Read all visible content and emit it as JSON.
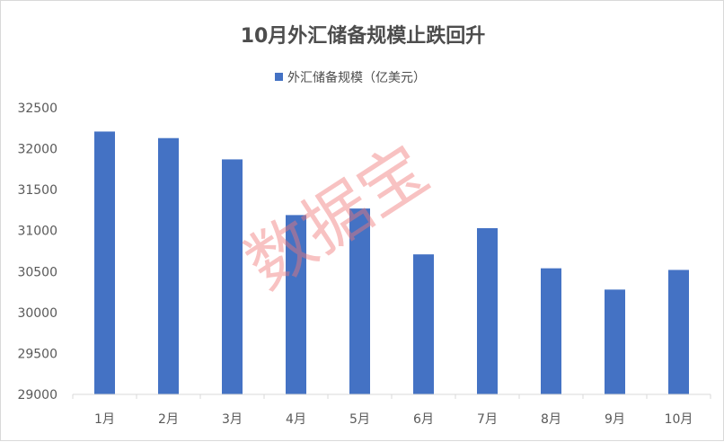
{
  "chart_data": {
    "type": "bar",
    "title": "10月外汇储备规模止跌回升",
    "categories": [
      "1月",
      "2月",
      "3月",
      "4月",
      "5月",
      "6月",
      "7月",
      "8月",
      "9月",
      "10月"
    ],
    "series": [
      {
        "name": "外汇储备规模（亿美元）",
        "values": [
          32210,
          32130,
          31870,
          31190,
          31270,
          30710,
          31030,
          30540,
          30280,
          30520
        ]
      }
    ],
    "xlabel": "",
    "ylabel": "",
    "ylim": [
      29000,
      32500
    ],
    "yticks": [
      29000,
      29500,
      30000,
      30500,
      31000,
      31500,
      32000,
      32500
    ],
    "grid": false,
    "legend": "top-center",
    "colors": {
      "bar": "#4472c4",
      "watermark": "#f07878"
    }
  },
  "watermark": "数据宝"
}
